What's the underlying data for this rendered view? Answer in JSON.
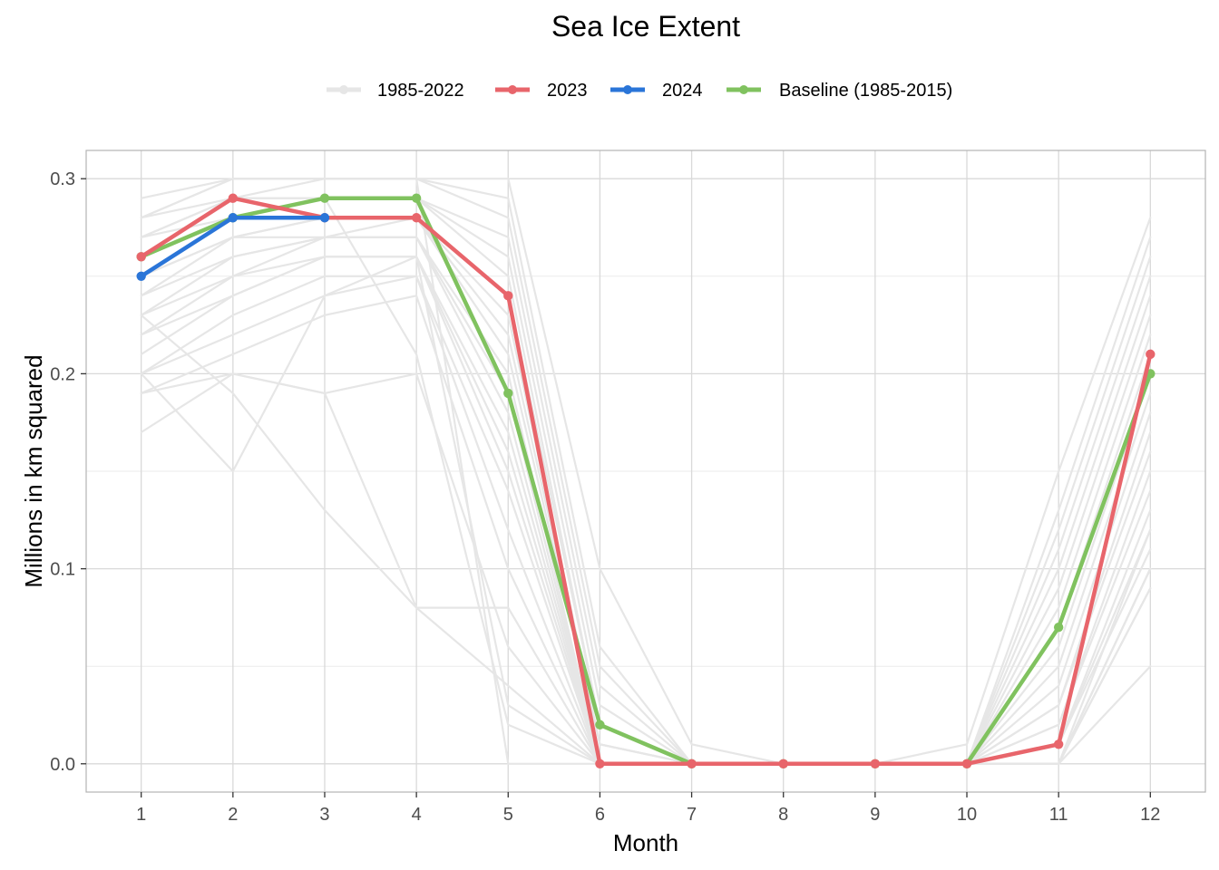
{
  "chart_data": {
    "type": "line",
    "title": "Sea Ice Extent",
    "xlabel": "Month",
    "ylabel": "Millions in km squared",
    "x": [
      1,
      2,
      3,
      4,
      5,
      6,
      7,
      8,
      9,
      10,
      11,
      12
    ],
    "xticks": [
      "1",
      "2",
      "3",
      "4",
      "5",
      "6",
      "7",
      "8",
      "9",
      "10",
      "11",
      "12"
    ],
    "yticks": [
      "0.0",
      "0.1",
      "0.2",
      "0.3"
    ],
    "xlim": [
      0.4,
      12.6
    ],
    "ylim": [
      -0.0145,
      0.3145
    ],
    "grid": true,
    "legend_position": "top",
    "legend": [
      {
        "label": "1985-2022",
        "color": "#e6e6e6"
      },
      {
        "label": "2023",
        "color": "#e8656b"
      },
      {
        "label": "2024",
        "color": "#2a75d8"
      },
      {
        "label": "Baseline (1985-2015)",
        "color": "#80c25f"
      }
    ],
    "background_series": {
      "name": "1985-2022",
      "color": "#e6e6e6",
      "lines": [
        [
          0.29,
          0.3,
          0.3,
          0.3,
          0.3,
          0.1,
          0.01,
          0.0,
          0.0,
          0.01,
          0.15,
          0.28
        ],
        [
          0.28,
          0.3,
          0.3,
          0.3,
          0.29,
          0.06,
          0.0,
          0.0,
          0.0,
          0.0,
          0.13,
          0.27
        ],
        [
          0.28,
          0.29,
          0.3,
          0.3,
          0.28,
          0.05,
          0.0,
          0.0,
          0.0,
          0.0,
          0.12,
          0.26
        ],
        [
          0.27,
          0.29,
          0.29,
          0.29,
          0.27,
          0.04,
          0.0,
          0.0,
          0.0,
          0.0,
          0.11,
          0.25
        ],
        [
          0.27,
          0.28,
          0.29,
          0.29,
          0.26,
          0.03,
          0.0,
          0.0,
          0.0,
          0.0,
          0.1,
          0.24
        ],
        [
          0.26,
          0.28,
          0.29,
          0.29,
          0.25,
          0.02,
          0.0,
          0.0,
          0.0,
          0.0,
          0.09,
          0.23
        ],
        [
          0.26,
          0.28,
          0.28,
          0.28,
          0.24,
          0.02,
          0.0,
          0.0,
          0.0,
          0.0,
          0.08,
          0.22
        ],
        [
          0.25,
          0.27,
          0.28,
          0.28,
          0.23,
          0.01,
          0.0,
          0.0,
          0.0,
          0.0,
          0.07,
          0.21
        ],
        [
          0.25,
          0.27,
          0.28,
          0.28,
          0.22,
          0.01,
          0.0,
          0.0,
          0.0,
          0.0,
          0.06,
          0.2
        ],
        [
          0.24,
          0.27,
          0.27,
          0.28,
          0.21,
          0.01,
          0.0,
          0.0,
          0.0,
          0.0,
          0.05,
          0.19
        ],
        [
          0.24,
          0.26,
          0.27,
          0.27,
          0.2,
          0.0,
          0.0,
          0.0,
          0.0,
          0.0,
          0.04,
          0.18
        ],
        [
          0.23,
          0.26,
          0.27,
          0.27,
          0.19,
          0.0,
          0.0,
          0.0,
          0.0,
          0.0,
          0.03,
          0.17
        ],
        [
          0.23,
          0.25,
          0.27,
          0.27,
          0.18,
          0.0,
          0.0,
          0.0,
          0.0,
          0.0,
          0.03,
          0.16
        ],
        [
          0.22,
          0.25,
          0.26,
          0.26,
          0.17,
          0.0,
          0.0,
          0.0,
          0.0,
          0.0,
          0.02,
          0.15
        ],
        [
          0.22,
          0.24,
          0.26,
          0.26,
          0.16,
          0.0,
          0.0,
          0.0,
          0.0,
          0.0,
          0.02,
          0.14
        ],
        [
          0.21,
          0.24,
          0.26,
          0.26,
          0.15,
          0.0,
          0.0,
          0.0,
          0.0,
          0.0,
          0.01,
          0.13
        ],
        [
          0.2,
          0.23,
          0.25,
          0.25,
          0.14,
          0.0,
          0.0,
          0.0,
          0.0,
          0.0,
          0.01,
          0.12
        ],
        [
          0.2,
          0.22,
          0.24,
          0.25,
          0.12,
          0.0,
          0.0,
          0.0,
          0.0,
          0.0,
          0.01,
          0.11
        ],
        [
          0.19,
          0.21,
          0.23,
          0.24,
          0.1,
          0.0,
          0.0,
          0.0,
          0.0,
          0.0,
          0.0,
          0.1
        ],
        [
          0.19,
          0.2,
          0.19,
          0.08,
          0.08,
          0.0,
          0.0,
          0.0,
          0.0,
          0.0,
          0.0,
          0.09
        ],
        [
          0.17,
          0.2,
          0.19,
          0.2,
          0.06,
          0.0,
          0.0,
          0.0,
          0.0,
          0.0,
          0.0,
          0.05
        ],
        [
          0.23,
          0.19,
          0.13,
          0.08,
          0.04,
          0.0,
          0.0,
          0.0,
          0.0,
          0.0,
          0.0,
          0.09
        ],
        [
          0.2,
          0.15,
          0.24,
          0.26,
          0.03,
          0.0,
          0.0,
          0.0,
          0.0,
          0.0,
          0.0,
          0.1
        ],
        [
          0.28,
          0.3,
          0.3,
          0.3,
          0.0,
          0.0,
          0.0,
          0.0,
          0.0,
          0.0,
          0.0,
          0.12
        ],
        [
          0.27,
          0.29,
          0.29,
          0.21,
          0.02,
          0.0,
          0.0,
          0.0,
          0.0,
          0.0,
          0.0,
          0.1
        ]
      ]
    },
    "series": [
      {
        "name": "Baseline (1985-2015)",
        "color": "#80c25f",
        "values": [
          0.26,
          0.28,
          0.29,
          0.29,
          0.19,
          0.02,
          0.0,
          0.0,
          0.0,
          0.0,
          0.07,
          0.2
        ]
      },
      {
        "name": "2023",
        "color": "#e8656b",
        "values": [
          0.26,
          0.29,
          0.28,
          0.28,
          0.24,
          0.0,
          0.0,
          0.0,
          0.0,
          0.0,
          0.01,
          0.21
        ]
      },
      {
        "name": "2024",
        "color": "#2a75d8",
        "values": [
          0.25,
          0.28,
          0.28,
          null,
          null,
          null,
          null,
          null,
          null,
          null,
          null,
          null
        ]
      }
    ]
  }
}
